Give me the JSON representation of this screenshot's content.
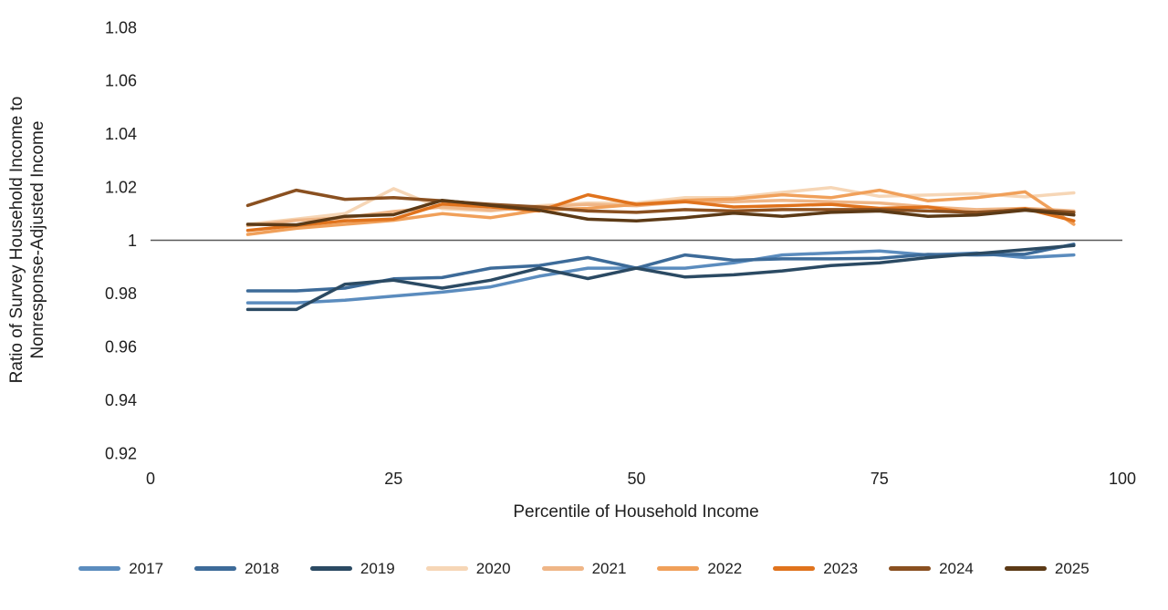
{
  "chart_data": {
    "type": "line",
    "title": "",
    "xlabel": "Percentile of Household Income",
    "ylabel_line1": "Ratio of Survey Household Income to",
    "ylabel_line2": "Nonresponse-Adjusted Income",
    "xlim": [
      0,
      100
    ],
    "ylim": [
      0.92,
      1.08
    ],
    "x_ticks": [
      0,
      25,
      50,
      75,
      100
    ],
    "x_tick_labels": [
      "0",
      "25",
      "50",
      "75",
      "100"
    ],
    "y_ticks": [
      1.08,
      1.06,
      1.04,
      1.02,
      1,
      0.98,
      0.96,
      0.94,
      0.92
    ],
    "y_tick_labels": [
      "1.08",
      "1.06",
      "1.04",
      "1.02",
      "1",
      "0.98",
      "0.96",
      "0.94",
      "0.92"
    ],
    "grid": false,
    "legend_position": "bottom",
    "reference_line": {
      "y": 1,
      "color": "#595959"
    },
    "x": [
      10,
      15,
      20,
      25,
      30,
      35,
      40,
      45,
      50,
      55,
      60,
      65,
      70,
      75,
      80,
      85,
      90,
      95
    ],
    "series": [
      {
        "name": "2017",
        "color": "#5b8cbe",
        "values": [
          0.9765,
          0.9765,
          0.9775,
          0.979,
          0.9805,
          0.9825,
          0.9865,
          0.9895,
          0.9895,
          0.9895,
          0.9915,
          0.9945,
          0.9952,
          0.996,
          0.9945,
          0.9952,
          0.9935,
          0.9945
        ]
      },
      {
        "name": "2018",
        "color": "#3d6b99",
        "values": [
          0.981,
          0.981,
          0.982,
          0.9855,
          0.986,
          0.9895,
          0.9905,
          0.9935,
          0.9895,
          0.9945,
          0.9925,
          0.993,
          0.993,
          0.9932,
          0.9947,
          0.9945,
          0.9948,
          0.9985
        ]
      },
      {
        "name": "2019",
        "color": "#2b4a63",
        "values": [
          0.974,
          0.974,
          0.9835,
          0.985,
          0.982,
          0.985,
          0.9895,
          0.9856,
          0.9895,
          0.9862,
          0.987,
          0.9885,
          0.9905,
          0.9915,
          0.9935,
          0.995,
          0.9965,
          0.998
        ]
      },
      {
        "name": "2020",
        "color": "#f6d6b6",
        "values": [
          1.006,
          1.008,
          1.01,
          1.0194,
          1.0119,
          1.011,
          1.013,
          1.014,
          1.014,
          1.016,
          1.016,
          1.018,
          1.0198,
          1.0165,
          1.017,
          1.0175,
          1.0163,
          1.0178
        ]
      },
      {
        "name": "2021",
        "color": "#efb687",
        "values": [
          1.0055,
          1.0075,
          1.0085,
          1.0108,
          1.0125,
          1.0113,
          1.0125,
          1.0135,
          1.013,
          1.0145,
          1.0145,
          1.015,
          1.0145,
          1.014,
          1.0125,
          1.0115,
          1.012,
          1.011
        ]
      },
      {
        "name": "2022",
        "color": "#f0a05a",
        "values": [
          1.0022,
          1.0045,
          1.006,
          1.0075,
          1.01,
          1.0085,
          1.0113,
          1.012,
          1.0135,
          1.015,
          1.0155,
          1.0171,
          1.016,
          1.0188,
          1.0148,
          1.016,
          1.0182,
          1.006
        ]
      },
      {
        "name": "2023",
        "color": "#e0731d",
        "values": [
          1.0037,
          1.0056,
          1.0073,
          1.008,
          1.0136,
          1.0125,
          1.011,
          1.0171,
          1.0135,
          1.0145,
          1.0125,
          1.013,
          1.0135,
          1.012,
          1.0125,
          1.01,
          1.0119,
          1.0073
        ]
      },
      {
        "name": "2024",
        "color": "#8a5020",
        "values": [
          1.0131,
          1.0188,
          1.0154,
          1.016,
          1.0148,
          1.0135,
          1.0125,
          1.011,
          1.0105,
          1.0115,
          1.011,
          1.0115,
          1.0115,
          1.0115,
          1.011,
          1.0105,
          1.0115,
          1.0105
        ]
      },
      {
        "name": "2025",
        "color": "#5c3a16",
        "values": [
          1.006,
          1.0058,
          1.009,
          1.0096,
          1.015,
          1.0131,
          1.0113,
          1.0079,
          1.0073,
          1.0085,
          1.0102,
          1.009,
          1.0105,
          1.011,
          1.009,
          1.0095,
          1.0113,
          1.0095
        ]
      }
    ]
  }
}
